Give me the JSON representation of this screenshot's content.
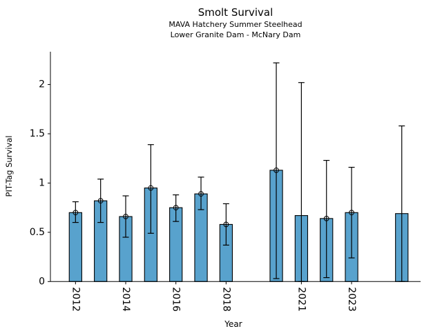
{
  "chart_data": {
    "type": "bar",
    "title": "Smolt Survival",
    "subtitle_lines": [
      "MAVA Hatchery Summer Steelhead",
      "Lower Granite Dam - McNary Dam"
    ],
    "xlabel": "Year",
    "ylabel": "PIT-Tag Survival",
    "xlim": [
      2011.0,
      2025.75
    ],
    "ylim": [
      0,
      2.333
    ],
    "grid": false,
    "legend": null,
    "bar_width_years": 0.5,
    "colors": {
      "bar_fill": "#58A2CD",
      "bar_edge": "#000000",
      "error_bar": "#000000",
      "axis": "#000000",
      "text": "#000000",
      "background": "#ffffff"
    },
    "xticks": [
      {
        "value": 2012,
        "label": "2012"
      },
      {
        "value": 2014,
        "label": "2014"
      },
      {
        "value": 2016,
        "label": "2016"
      },
      {
        "value": 2018,
        "label": "2018"
      },
      {
        "value": 2021,
        "label": "2021"
      },
      {
        "value": 2023,
        "label": "2023"
      }
    ],
    "yticks": [
      {
        "value": 0,
        "label": "0"
      },
      {
        "value": 0.5,
        "label": "0.5"
      },
      {
        "value": 1,
        "label": "1"
      },
      {
        "value": 1.5,
        "label": "1.5"
      },
      {
        "value": 2,
        "label": "2"
      }
    ],
    "bars": [
      {
        "year": 2012,
        "value": 0.7,
        "ci_low": 0.6,
        "ci_high": 0.81,
        "marker": true
      },
      {
        "year": 2013,
        "value": 0.82,
        "ci_low": 0.6,
        "ci_high": 1.04,
        "marker": true
      },
      {
        "year": 2014,
        "value": 0.66,
        "ci_low": 0.45,
        "ci_high": 0.87,
        "marker": true
      },
      {
        "year": 2015,
        "value": 0.95,
        "ci_low": 0.49,
        "ci_high": 1.39,
        "marker": true
      },
      {
        "year": 2016,
        "value": 0.75,
        "ci_low": 0.61,
        "ci_high": 0.88,
        "marker": true
      },
      {
        "year": 2017,
        "value": 0.89,
        "ci_low": 0.73,
        "ci_high": 1.06,
        "marker": true
      },
      {
        "year": 2018,
        "value": 0.58,
        "ci_low": 0.37,
        "ci_high": 0.79,
        "marker": true
      },
      {
        "year": 2020,
        "value": 1.13,
        "ci_low": 0.03,
        "ci_high": 2.22,
        "marker": true
      },
      {
        "year": 2021,
        "value": 0.67,
        "ci_low": 0.0,
        "ci_high": 2.02,
        "marker": false
      },
      {
        "year": 2022,
        "value": 0.64,
        "ci_low": 0.04,
        "ci_high": 1.23,
        "marker": true
      },
      {
        "year": 2023,
        "value": 0.7,
        "ci_low": 0.24,
        "ci_high": 1.16,
        "marker": true
      },
      {
        "year": 2025,
        "value": 0.69,
        "ci_low": 0.0,
        "ci_high": 1.58,
        "marker": false
      }
    ]
  }
}
